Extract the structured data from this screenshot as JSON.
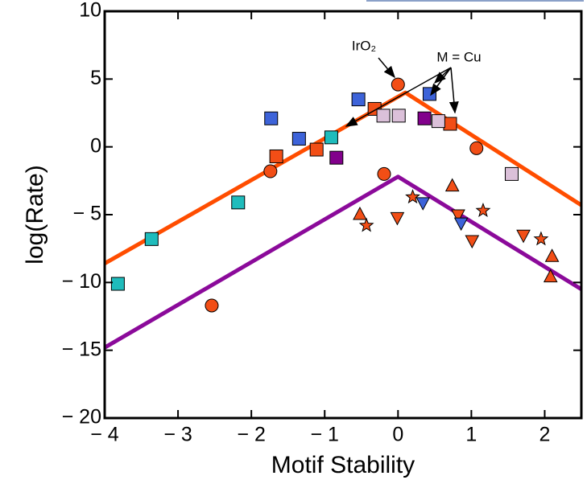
{
  "chart_data": {
    "type": "scatter",
    "xlabel": "Motif Stability",
    "ylabel": "log(Rate)",
    "xlim": [
      -4,
      2.5
    ],
    "ylim": [
      -20,
      10
    ],
    "xticks": [
      {
        "value": -4,
        "label": "− 4"
      },
      {
        "value": -3,
        "label": "− 3"
      },
      {
        "value": -2,
        "label": "− 2"
      },
      {
        "value": -1,
        "label": "− 1"
      },
      0,
      1,
      2
    ],
    "yticks": [
      {
        "value": -20,
        "label": "− 20"
      },
      {
        "value": -15,
        "label": "− 15"
      },
      {
        "value": -10,
        "label": "− 10"
      },
      {
        "value": -5,
        "label": "− 5"
      },
      0,
      5,
      10
    ],
    "annotations": [
      "IrO₂",
      "M = Cu"
    ],
    "lines": [
      {
        "color": "#ff4d00",
        "x": [
          -4,
          0.1,
          2.5
        ],
        "values": [
          -8.6,
          4,
          -4.3
        ]
      },
      {
        "color": "#8b0a9a",
        "x": [
          -4,
          0,
          2.5
        ],
        "values": [
          -14.8,
          -2.2,
          -10.5
        ]
      }
    ],
    "series": [
      {
        "marker": "square",
        "color": "#3d63d9",
        "x": [
          -1.73,
          -1.35,
          -0.54,
          0.43
        ],
        "values": [
          2.1,
          0.6,
          3.5,
          3.9
        ]
      },
      {
        "marker": "square",
        "color": "#f24e16",
        "x": [
          -1.66,
          -1.11,
          -0.32,
          0.71
        ],
        "values": [
          -0.7,
          -0.2,
          2.8,
          1.7
        ]
      },
      {
        "marker": "square",
        "color": "#1fbcbc",
        "x": [
          -3.82,
          -3.36,
          -2.18,
          -0.91
        ],
        "values": [
          -10.1,
          -6.8,
          -4.1,
          0.7
        ]
      },
      {
        "marker": "square",
        "color": "#82008c",
        "x": [
          -0.84,
          0.36
        ],
        "values": [
          -0.8,
          2.1
        ]
      },
      {
        "marker": "square",
        "color": "#dbc0d9",
        "x": [
          -0.2,
          0.01,
          0.55,
          1.55
        ],
        "values": [
          2.3,
          2.3,
          1.9,
          -2.0
        ]
      },
      {
        "marker": "circle",
        "color": "#f24e16",
        "x": [
          -1.74,
          -0.19,
          0,
          1.07,
          -2.54
        ],
        "values": [
          -1.8,
          -2.0,
          4.6,
          -0.1,
          -11.7
        ]
      },
      {
        "marker": "triangle-up",
        "color": "#f24e16",
        "x": [
          -0.52,
          0.74,
          2.08,
          2.1
        ],
        "values": [
          -5.0,
          -2.9,
          -9.6,
          -8.1
        ]
      },
      {
        "marker": "triangle-down",
        "color": "#f24e16",
        "x": [
          -0.01,
          0.82,
          1.01,
          1.71
        ],
        "values": [
          -5.2,
          -5.0,
          -6.9,
          -6.5
        ]
      },
      {
        "marker": "triangle-down",
        "color": "#3d63d9",
        "x": [
          0.34,
          0.86
        ],
        "values": [
          -4.1,
          -5.6
        ]
      },
      {
        "marker": "star",
        "color": "#f24e16",
        "x": [
          -0.43,
          0.2,
          1.16,
          1.95
        ],
        "values": [
          -5.8,
          -3.7,
          -4.7,
          -6.8
        ]
      }
    ]
  }
}
